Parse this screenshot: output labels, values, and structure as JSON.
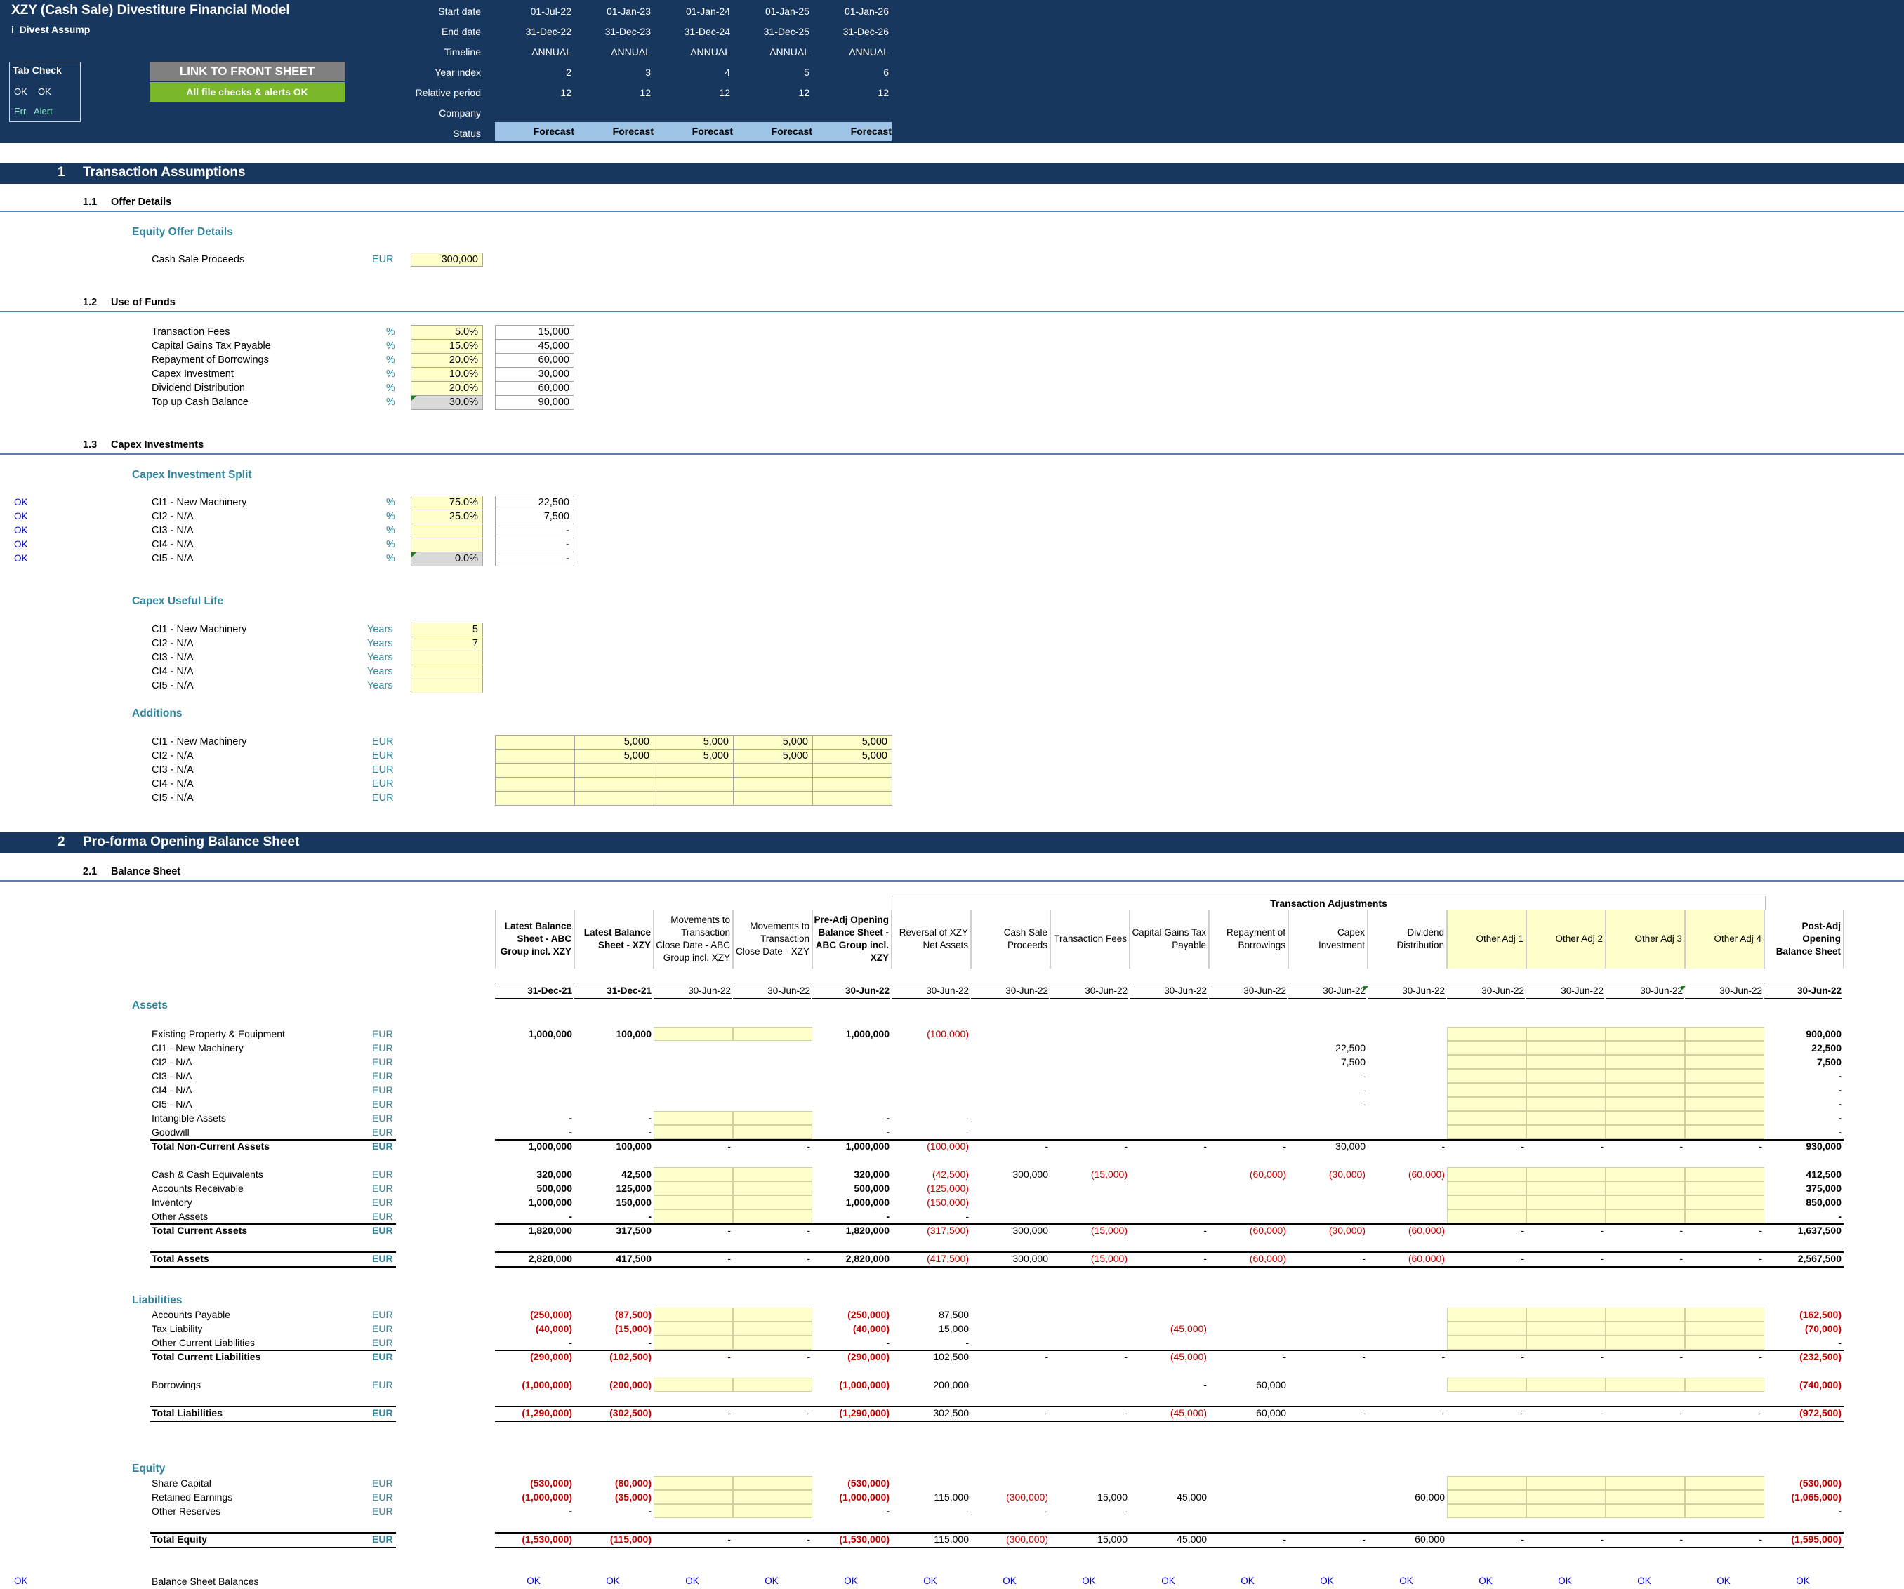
{
  "header": {
    "title": "XZY (Cash Sale) Divestiture Financial Model",
    "sheet": "i_Divest Assump",
    "tab_check": {
      "title": "Tab Check",
      "ok1": "OK",
      "ok2": "OK",
      "err": "Err",
      "alert": "Alert"
    },
    "link_button": "LINK TO FRONT SHEET",
    "checks_status": "All file checks & alerts OK",
    "timeline_labels": {
      "start": "Start date",
      "end": "End date",
      "timeline": "Timeline",
      "year_index": "Year index",
      "relative": "Relative period",
      "company": "Company",
      "status": "Status"
    },
    "periods": [
      {
        "start": "01-Jul-22",
        "end": "31-Dec-22",
        "timeline": "ANNUAL",
        "year_index": "2",
        "relative": "12",
        "status": "Forecast"
      },
      {
        "start": "01-Jan-23",
        "end": "31-Dec-23",
        "timeline": "ANNUAL",
        "year_index": "3",
        "relative": "12",
        "status": "Forecast"
      },
      {
        "start": "01-Jan-24",
        "end": "31-Dec-24",
        "timeline": "ANNUAL",
        "year_index": "4",
        "relative": "12",
        "status": "Forecast"
      },
      {
        "start": "01-Jan-25",
        "end": "31-Dec-25",
        "timeline": "ANNUAL",
        "year_index": "5",
        "relative": "12",
        "status": "Forecast"
      },
      {
        "start": "01-Jan-26",
        "end": "31-Dec-26",
        "timeline": "ANNUAL",
        "year_index": "6",
        "relative": "12",
        "status": "Forecast"
      }
    ]
  },
  "s1": {
    "num": "1",
    "title": "Transaction Assumptions"
  },
  "s11": {
    "num": "1.1",
    "title": "Offer Details",
    "sub": "Equity Offer Details",
    "row": {
      "label": "Cash Sale Proceeds",
      "unit": "EUR",
      "value": "300,000"
    }
  },
  "s12": {
    "num": "1.2",
    "title": "Use of Funds",
    "rows": [
      {
        "label": "Transaction Fees",
        "unit": "%",
        "pct": "5.0%",
        "amt": "15,000"
      },
      {
        "label": "Capital Gains Tax Payable",
        "unit": "%",
        "pct": "15.0%",
        "amt": "45,000"
      },
      {
        "label": "Repayment of Borrowings",
        "unit": "%",
        "pct": "20.0%",
        "amt": "60,000"
      },
      {
        "label": "Capex Investment",
        "unit": "%",
        "pct": "10.0%",
        "amt": "30,000"
      },
      {
        "label": "Dividend Distribution",
        "unit": "%",
        "pct": "20.0%",
        "amt": "60,000"
      },
      {
        "label": "Top up Cash Balance",
        "unit": "%",
        "pct": "30.0%",
        "amt": "90,000"
      }
    ]
  },
  "s13": {
    "num": "1.3",
    "title": "Capex Investments",
    "split_title": "Capex Investment Split",
    "split": [
      {
        "ok": "OK",
        "label": "CI1 - New Machinery",
        "unit": "%",
        "pct": "75.0%",
        "amt": "22,500"
      },
      {
        "ok": "OK",
        "label": "CI2 - N/A",
        "unit": "%",
        "pct": "25.0%",
        "amt": "7,500"
      },
      {
        "ok": "OK",
        "label": "CI3 - N/A",
        "unit": "%",
        "pct": "",
        "amt": "-"
      },
      {
        "ok": "OK",
        "label": "CI4 - N/A",
        "unit": "%",
        "pct": "",
        "amt": "-"
      },
      {
        "ok": "OK",
        "label": "CI5 - N/A",
        "unit": "%",
        "pct": "0.0%",
        "amt": "-"
      }
    ],
    "life_title": "Capex Useful Life",
    "life": [
      {
        "label": "CI1 - New Machinery",
        "unit": "Years",
        "val": "5"
      },
      {
        "label": "CI2 - N/A",
        "unit": "Years",
        "val": "7"
      },
      {
        "label": "CI3 - N/A",
        "unit": "Years",
        "val": ""
      },
      {
        "label": "CI4 - N/A",
        "unit": "Years",
        "val": ""
      },
      {
        "label": "CI5 - N/A",
        "unit": "Years",
        "val": ""
      }
    ],
    "add_title": "Additions",
    "additions": [
      {
        "label": "CI1 - New Machinery",
        "unit": "EUR",
        "vals": [
          "",
          "5,000",
          "5,000",
          "5,000",
          "5,000"
        ]
      },
      {
        "label": "CI2 - N/A",
        "unit": "EUR",
        "vals": [
          "",
          "5,000",
          "5,000",
          "5,000",
          "5,000"
        ]
      },
      {
        "label": "CI3 - N/A",
        "unit": "EUR",
        "vals": [
          "",
          "",
          "",
          "",
          ""
        ]
      },
      {
        "label": "CI4 - N/A",
        "unit": "EUR",
        "vals": [
          "",
          "",
          "",
          "",
          ""
        ]
      },
      {
        "label": "CI5 - N/A",
        "unit": "EUR",
        "vals": [
          "",
          "",
          "",
          "",
          ""
        ]
      }
    ]
  },
  "s2": {
    "num": "2",
    "title": "Pro-forma Opening Balance Sheet"
  },
  "s21": {
    "num": "2.1",
    "title": "Balance Sheet",
    "adj_group": "Transaction Adjustments",
    "columns": [
      {
        "head": "Latest Balance Sheet - ABC Group incl. XZY",
        "date": "31-Dec-21",
        "bold": true
      },
      {
        "head": "Latest Balance Sheet - XZY",
        "date": "31-Dec-21",
        "bold": true
      },
      {
        "head": "Movements to Transaction Close Date - ABC Group incl. XZY",
        "date": "30-Jun-22",
        "bold": false
      },
      {
        "head": "Movements to Transaction Close Date - XZY",
        "date": "30-Jun-22",
        "bold": false
      },
      {
        "head": "Pre-Adj Opening Balance Sheet - ABC Group incl. XZY",
        "date": "30-Jun-22",
        "bold": true
      },
      {
        "head": "Reversal of XZY Net Assets",
        "date": "30-Jun-22",
        "bold": false
      },
      {
        "head": "Cash Sale Proceeds",
        "date": "30-Jun-22",
        "bold": false
      },
      {
        "head": "Transaction Fees",
        "date": "30-Jun-22",
        "bold": false
      },
      {
        "head": "Capital Gains Tax Payable",
        "date": "30-Jun-22",
        "bold": false
      },
      {
        "head": "Repayment of Borrowings",
        "date": "30-Jun-22",
        "bold": false
      },
      {
        "head": "Capex Investment",
        "date": "30-Jun-22",
        "bold": false
      },
      {
        "head": "Dividend Distribution",
        "date": "30-Jun-22",
        "bold": false
      },
      {
        "head": "Other Adj 1",
        "date": "30-Jun-22",
        "bold": false
      },
      {
        "head": "Other Adj 2",
        "date": "30-Jun-22",
        "bold": false
      },
      {
        "head": "Other Adj 3",
        "date": "30-Jun-22",
        "bold": false
      },
      {
        "head": "Other Adj 4",
        "date": "30-Jun-22",
        "bold": false
      },
      {
        "head": "Post-Adj Opening Balance Sheet",
        "date": "30-Jun-22",
        "bold": true
      }
    ],
    "assets_title": "Assets",
    "liab_title": "Liabilities",
    "equity_title": "Equity",
    "rows": [
      {
        "label": "Existing Property & Equipment",
        "unit": "EUR",
        "vals": [
          "1,000,000",
          "100,000",
          "",
          "",
          "1,000,000",
          "(100,000)",
          "",
          "",
          "",
          "",
          "",
          "",
          "",
          "",
          "",
          "",
          "900,000"
        ]
      },
      {
        "label": "CI1 - New Machinery",
        "unit": "EUR",
        "vals": [
          "",
          "",
          "",
          "",
          "",
          "",
          "",
          "",
          "",
          "",
          "22,500",
          "",
          "",
          "",
          "",
          "",
          "22,500"
        ]
      },
      {
        "label": "CI2 - N/A",
        "unit": "EUR",
        "vals": [
          "",
          "",
          "",
          "",
          "",
          "",
          "",
          "",
          "",
          "",
          "7,500",
          "",
          "",
          "",
          "",
          "",
          "7,500"
        ]
      },
      {
        "label": "CI3 - N/A",
        "unit": "EUR",
        "vals": [
          "",
          "",
          "",
          "",
          "",
          "",
          "",
          "",
          "",
          "",
          "-",
          "",
          "",
          "",
          "",
          "",
          "-"
        ]
      },
      {
        "label": "CI4 - N/A",
        "unit": "EUR",
        "vals": [
          "",
          "",
          "",
          "",
          "",
          "",
          "",
          "",
          "",
          "",
          "-",
          "",
          "",
          "",
          "",
          "",
          "-"
        ]
      },
      {
        "label": "CI5 - N/A",
        "unit": "EUR",
        "vals": [
          "",
          "",
          "",
          "",
          "",
          "",
          "",
          "",
          "",
          "",
          "-",
          "",
          "",
          "",
          "",
          "",
          "-"
        ]
      },
      {
        "label": "Intangible Assets",
        "unit": "EUR",
        "vals": [
          "-",
          "-",
          "",
          "",
          "-",
          "-",
          "",
          "",
          "",
          "",
          "",
          "",
          "",
          "",
          "",
          "",
          "-"
        ]
      },
      {
        "label": "Goodwill",
        "unit": "EUR",
        "vals": [
          "-",
          "-",
          "",
          "",
          "-",
          "-",
          "",
          "",
          "",
          "",
          "",
          "",
          "",
          "",
          "",
          "",
          "-"
        ]
      },
      {
        "label": "Total Non-Current Assets",
        "unit": "EUR",
        "total": true,
        "vals": [
          "1,000,000",
          "100,000",
          "-",
          "-",
          "1,000,000",
          "(100,000)",
          "-",
          "-",
          "-",
          "-",
          "30,000",
          "-",
          "-",
          "-",
          "-",
          "-",
          "930,000"
        ]
      },
      {
        "label": "Cash & Cash Equivalents",
        "unit": "EUR",
        "vals": [
          "320,000",
          "42,500",
          "",
          "",
          "320,000",
          "(42,500)",
          "300,000",
          "(15,000)",
          "",
          "(60,000)",
          "(30,000)",
          "(60,000)",
          "",
          "",
          "",
          "",
          "412,500"
        ]
      },
      {
        "label": "Accounts Receivable",
        "unit": "EUR",
        "vals": [
          "500,000",
          "125,000",
          "",
          "",
          "500,000",
          "(125,000)",
          "",
          "",
          "",
          "",
          "",
          "",
          "",
          "",
          "",
          "",
          "375,000"
        ]
      },
      {
        "label": "Inventory",
        "unit": "EUR",
        "vals": [
          "1,000,000",
          "150,000",
          "",
          "",
          "1,000,000",
          "(150,000)",
          "",
          "",
          "",
          "",
          "",
          "",
          "",
          "",
          "",
          "",
          "850,000"
        ]
      },
      {
        "label": "Other Assets",
        "unit": "EUR",
        "vals": [
          "-",
          "-",
          "",
          "",
          "-",
          "-",
          "",
          "",
          "",
          "",
          "",
          "",
          "",
          "",
          "",
          "",
          "-"
        ]
      },
      {
        "label": "Total Current Assets",
        "unit": "EUR",
        "total": true,
        "vals": [
          "1,820,000",
          "317,500",
          "-",
          "-",
          "1,820,000",
          "(317,500)",
          "300,000",
          "(15,000)",
          "-",
          "(60,000)",
          "(30,000)",
          "(60,000)",
          "-",
          "-",
          "-",
          "-",
          "1,637,500"
        ]
      },
      {
        "label": "Total Assets",
        "unit": "EUR",
        "total": true,
        "vals": [
          "2,820,000",
          "417,500",
          "-",
          "-",
          "2,820,000",
          "(417,500)",
          "300,000",
          "(15,000)",
          "-",
          "(60,000)",
          "-",
          "(60,000)",
          "-",
          "-",
          "-",
          "-",
          "2,567,500"
        ]
      },
      {
        "label": "Accounts Payable",
        "unit": "EUR",
        "vals": [
          "(250,000)",
          "(87,500)",
          "",
          "",
          "(250,000)",
          "87,500",
          "",
          "",
          "",
          "",
          "",
          "",
          "",
          "",
          "",
          "",
          "(162,500)"
        ]
      },
      {
        "label": "Tax Liability",
        "unit": "EUR",
        "vals": [
          "(40,000)",
          "(15,000)",
          "",
          "",
          "(40,000)",
          "15,000",
          "",
          "",
          "(45,000)",
          "",
          "",
          "",
          "",
          "",
          "",
          "",
          "(70,000)"
        ]
      },
      {
        "label": "Other Current Liabilities",
        "unit": "EUR",
        "vals": [
          "-",
          "-",
          "",
          "",
          "-",
          "-",
          "",
          "",
          "",
          "",
          "",
          "",
          "",
          "",
          "",
          "",
          "-"
        ]
      },
      {
        "label": "Total Current Liabilities",
        "unit": "EUR",
        "total": true,
        "vals": [
          "(290,000)",
          "(102,500)",
          "-",
          "-",
          "(290,000)",
          "102,500",
          "-",
          "-",
          "(45,000)",
          "-",
          "-",
          "-",
          "-",
          "-",
          "-",
          "-",
          "(232,500)"
        ]
      },
      {
        "label": "Borrowings",
        "unit": "EUR",
        "vals": [
          "(1,000,000)",
          "(200,000)",
          "",
          "",
          "(1,000,000)",
          "200,000",
          "",
          "",
          "-",
          "60,000",
          "",
          "",
          "",
          "",
          "",
          "",
          "(740,000)"
        ]
      },
      {
        "label": "Total Liabilities",
        "unit": "EUR",
        "total": true,
        "vals": [
          "(1,290,000)",
          "(302,500)",
          "-",
          "-",
          "(1,290,000)",
          "302,500",
          "-",
          "-",
          "(45,000)",
          "60,000",
          "-",
          "-",
          "-",
          "-",
          "-",
          "-",
          "(972,500)"
        ]
      },
      {
        "label": "Share Capital",
        "unit": "EUR",
        "vals": [
          "(530,000)",
          "(80,000)",
          "",
          "",
          "(530,000)",
          "",
          "",
          "",
          "",
          "",
          "",
          "",
          "",
          "",
          "",
          "",
          "(530,000)"
        ]
      },
      {
        "label": "Retained Earnings",
        "unit": "EUR",
        "vals": [
          "(1,000,000)",
          "(35,000)",
          "",
          "",
          "(1,000,000)",
          "115,000",
          "(300,000)",
          "15,000",
          "45,000",
          "",
          "",
          "60,000",
          "",
          "",
          "",
          "",
          "(1,065,000)"
        ]
      },
      {
        "label": "Other Reserves",
        "unit": "EUR",
        "vals": [
          "-",
          "-",
          "",
          "",
          "-",
          "-",
          "-",
          "-",
          "",
          "",
          "",
          "",
          "",
          "",
          "",
          "",
          "-"
        ]
      },
      {
        "label": "Total Equity",
        "unit": "EUR",
        "total": true,
        "vals": [
          "(1,530,000)",
          "(115,000)",
          "-",
          "-",
          "(1,530,000)",
          "115,000",
          "(300,000)",
          "15,000",
          "45,000",
          "-",
          "-",
          "60,000",
          "-",
          "-",
          "-",
          "-",
          "(1,595,000)"
        ]
      }
    ],
    "check": {
      "ok": "OK",
      "label": "Balance Sheet Balances",
      "vals": [
        "OK",
        "OK",
        "OK",
        "OK",
        "OK",
        "OK",
        "OK",
        "OK",
        "OK",
        "OK",
        "OK",
        "OK",
        "OK",
        "OK",
        "OK",
        "OK",
        "OK"
      ]
    }
  }
}
